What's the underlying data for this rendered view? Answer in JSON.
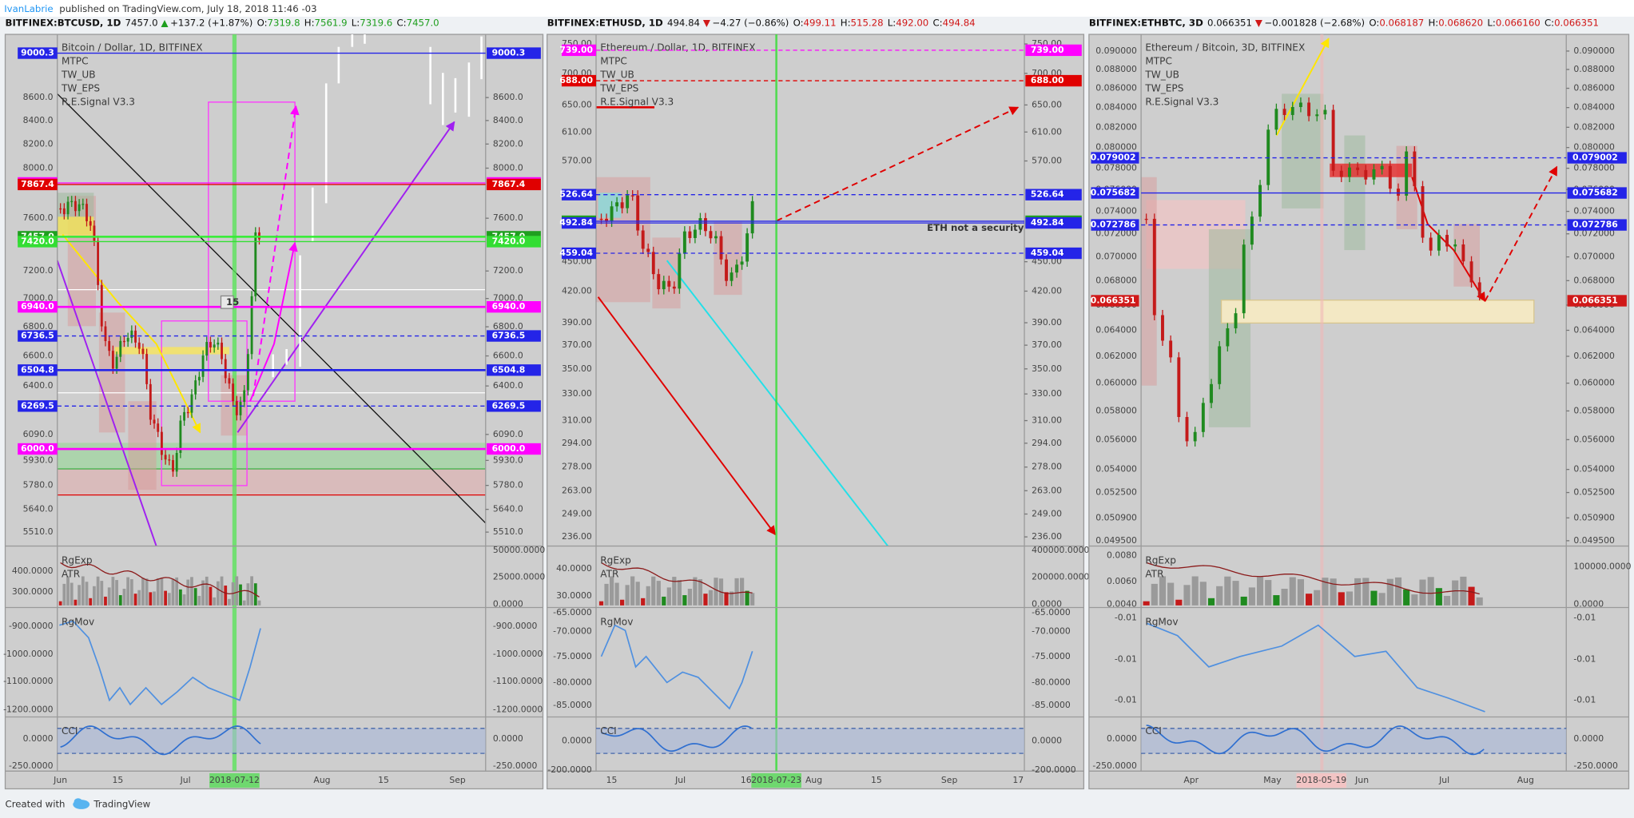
{
  "header": {
    "author": "IvanLabrie",
    "text": "published on TradingView.com, July 18, 2018 11:46 -03"
  },
  "panels": [
    {
      "symbol": "BITFINEX:BTCUSD, 1D",
      "last": "7457.0",
      "arrow": "▲",
      "change": "+137.2 (+1.87%)",
      "direction_color": "#1e9e1e",
      "ohlc": [
        {
          "label": "O:",
          "value": "7319.8"
        },
        {
          "label": "H:",
          "value": "7561.9"
        },
        {
          "label": "L:",
          "value": "7319.6"
        },
        {
          "label": "C:",
          "value": "7457.0"
        }
      ],
      "legend": [
        "Bitcoin / Dollar, 1D, BITFINEX",
        "MTPC",
        "TW_UB",
        "TW_EPS",
        "R.E.Signal V3.3"
      ],
      "ylim": [
        5432,
        9175
      ],
      "price_ticks": [
        {
          "value": 8600,
          "label": "8600.0"
        },
        {
          "value": 8400,
          "label": "8400.0"
        },
        {
          "value": 8200,
          "label": "8200.0"
        },
        {
          "value": 8000,
          "label": "8000.0"
        },
        {
          "value": 7600,
          "label": "7600.0"
        },
        {
          "value": 7200,
          "label": "7200.0"
        },
        {
          "value": 7000,
          "label": "7000.0"
        },
        {
          "value": 6800,
          "label": "6800.0"
        },
        {
          "value": 6600,
          "label": "6600.0"
        },
        {
          "value": 6400,
          "label": "6400.0"
        },
        {
          "value": 6090,
          "label": "6090.0"
        },
        {
          "value": 5930,
          "label": "5930.0"
        },
        {
          "value": 5780,
          "label": "5780.0"
        },
        {
          "value": 5640,
          "label": "5640.0"
        },
        {
          "value": 5510,
          "label": "5510.0"
        }
      ],
      "tags": [
        {
          "value": 9000.3,
          "label": "9000.3",
          "color": "#2424e8",
          "line_color": "#2424e8",
          "line": "solid"
        },
        {
          "value": 7880,
          "label": "7880.0",
          "color": "#ff00ff",
          "line_color": "#ff00ff",
          "line": "solid"
        },
        {
          "value": 7867.4,
          "label": "7867.4",
          "color": "#e00000",
          "line_color": "#e00000",
          "line": "solid"
        },
        {
          "value": 7457,
          "label": "7457.0",
          "color": "#1f9f1f",
          "line_color": "#33ee33",
          "line": "thick"
        },
        {
          "value": 7420,
          "label": "7420.0",
          "color": "#33dd33",
          "line_color": "#33dd33",
          "line": "solid"
        },
        {
          "value": 6940,
          "label": "6940.0",
          "color": "#ff00ff",
          "line_color": "#ff00ff",
          "line": "thick"
        },
        {
          "value": 6736.5,
          "label": "6736.5",
          "color": "#2424e8",
          "line_color": "#2424e8",
          "line": "dashed"
        },
        {
          "value": 6504.8,
          "label": "6504.8",
          "color": "#2424e8",
          "line_color": "#2424e8",
          "line": "thick"
        },
        {
          "value": 6269.5,
          "label": "6269.5",
          "color": "#2424e8",
          "line_color": "#2424e8",
          "line": "dashed"
        },
        {
          "value": 6000,
          "label": "6000.0",
          "color": "#ff00ff",
          "line_color": "#ff00ff",
          "line": "thick"
        }
      ],
      "annotations": [
        "15"
      ],
      "time_ticks": [
        "Jun",
        "15",
        "Jul",
        "Aug",
        "15",
        "Sep"
      ],
      "time_marker": "2018-07-12",
      "volume": {
        "label": "RgExp",
        "sublabel": "ATR",
        "left": [
          "400.0000",
          "300.0000"
        ],
        "right": [
          "50000.0000",
          "25000.0000",
          "0.0000"
        ]
      },
      "rgmov": {
        "label": "RgMov",
        "left": [
          "-900.0000",
          "-1000.0000",
          "-1100.0000",
          "-1200.0000"
        ],
        "right": [
          "-900.0000",
          "-1000.0000",
          "-1100.0000",
          "-1200.0000"
        ]
      },
      "cci": {
        "label": "CCI",
        "left": [
          "0.0000",
          "-250.0000"
        ],
        "right": [
          "0.0000",
          "-250.0000"
        ]
      }
    },
    {
      "symbol": "BITFINEX:ETHUSD, 1D",
      "last": "494.84",
      "arrow": "▼",
      "change": "−4.27 (−0.86%)",
      "direction_color": "#d01818",
      "ohlc": [
        {
          "label": "O:",
          "value": "499.11"
        },
        {
          "label": "H:",
          "value": "515.28"
        },
        {
          "label": "L:",
          "value": "492.00"
        },
        {
          "label": "C:",
          "value": "494.84"
        }
      ],
      "legend": [
        "Ethereum / Dollar, 1D, BITFINEX",
        "MTPC",
        "TW_UB",
        "TW_EPS",
        "R.E.Signal V3.3"
      ],
      "ylim": [
        231,
        767
      ],
      "price_ticks": [
        {
          "value": 750,
          "label": "750.00"
        },
        {
          "value": 700,
          "label": "700.00"
        },
        {
          "value": 650,
          "label": "650.00"
        },
        {
          "value": 610,
          "label": "610.00"
        },
        {
          "value": 570,
          "label": "570.00"
        },
        {
          "value": 450,
          "label": "450.00"
        },
        {
          "value": 420,
          "label": "420.00"
        },
        {
          "value": 390,
          "label": "390.00"
        },
        {
          "value": 370,
          "label": "370.00"
        },
        {
          "value": 350,
          "label": "350.00"
        },
        {
          "value": 330,
          "label": "330.00"
        },
        {
          "value": 310,
          "label": "310.00"
        },
        {
          "value": 294,
          "label": "294.00"
        },
        {
          "value": 278,
          "label": "278.00"
        },
        {
          "value": 263,
          "label": "263.00"
        },
        {
          "value": 249,
          "label": "249.00"
        },
        {
          "value": 236,
          "label": "236.00"
        }
      ],
      "tags": [
        {
          "value": 739,
          "label": "739.00",
          "color": "#ff00ff",
          "line_color": "#ff00ff",
          "line": "dashed"
        },
        {
          "value": 688,
          "label": "688.00",
          "color": "#e00000",
          "line_color": "#e00000",
          "line": "dashed"
        },
        {
          "value": 526.64,
          "label": "526.64",
          "color": "#2424e8",
          "line_color": "#2424e8",
          "line": "dashed"
        },
        {
          "value": 494.84,
          "label": "494.84",
          "color": "#1f9f1f",
          "line_color": "#2424e8",
          "line": "solid"
        },
        {
          "value": 492.84,
          "label": "492.84",
          "color": "#2424e8",
          "line_color": "#2424e8",
          "line": "solid"
        },
        {
          "value": 459.04,
          "label": "459.04",
          "color": "#2424e8",
          "line_color": "#2424e8",
          "line": "dashed"
        }
      ],
      "annotations": [
        "ETH not a security"
      ],
      "time_ticks": [
        "15",
        "Jul",
        "16",
        "Aug",
        "15",
        "Sep",
        "17"
      ],
      "time_marker": "2018-07-23",
      "volume": {
        "label": "RgExp",
        "sublabel": "ATR",
        "left": [
          "40.0000",
          "30.0000"
        ],
        "right": [
          "400000.0000",
          "200000.0000",
          "0.0000"
        ]
      },
      "rgmov": {
        "label": "RgMov",
        "left": [
          "-65.0000",
          "-70.0000",
          "-75.0000",
          "-80.0000",
          "-85.0000"
        ],
        "right": [
          "-65.0000",
          "-70.0000",
          "-75.0000",
          "-80.0000",
          "-85.0000"
        ]
      },
      "cci": {
        "label": "CCI",
        "left": [
          "0.0000",
          "-200.0000"
        ],
        "right": [
          "0.0000",
          "-200.0000"
        ]
      }
    },
    {
      "symbol": "BITFINEX:ETHBTC, 3D",
      "last": "0.066351",
      "arrow": "▼",
      "change": "−0.001828 (−2.68%)",
      "direction_color": "#d01818",
      "ohlc": [
        {
          "label": "O:",
          "value": "0.068187"
        },
        {
          "label": "H:",
          "value": "0.068620"
        },
        {
          "label": "L:",
          "value": "0.066160"
        },
        {
          "label": "C:",
          "value": "0.066351"
        }
      ],
      "legend": [
        "Ethereum / Bitcoin, 3D, BITFINEX",
        "MTPC",
        "TW_UB",
        "TW_EPS",
        "R.E.Signal V3.3"
      ],
      "ylim": [
        0.04918,
        0.09185
      ],
      "price_ticks": [
        {
          "value": 0.09,
          "label": "0.090000"
        },
        {
          "value": 0.088,
          "label": "0.088000"
        },
        {
          "value": 0.086,
          "label": "0.086000"
        },
        {
          "value": 0.084,
          "label": "0.084000"
        },
        {
          "value": 0.082,
          "label": "0.082000"
        },
        {
          "value": 0.08,
          "label": "0.080000"
        },
        {
          "value": 0.078,
          "label": "0.078000"
        },
        {
          "value": 0.076,
          "label": "0.076000"
        },
        {
          "value": 0.074,
          "label": "0.074000"
        },
        {
          "value": 0.072,
          "label": "0.072000"
        },
        {
          "value": 0.07,
          "label": "0.070000"
        },
        {
          "value": 0.068,
          "label": "0.068000"
        },
        {
          "value": 0.066,
          "label": "0.066000"
        },
        {
          "value": 0.064,
          "label": "0.064000"
        },
        {
          "value": 0.062,
          "label": "0.062000"
        },
        {
          "value": 0.06,
          "label": "0.060000"
        },
        {
          "value": 0.058,
          "label": "0.058000"
        },
        {
          "value": 0.056,
          "label": "0.056000"
        },
        {
          "value": 0.054,
          "label": "0.054000"
        },
        {
          "value": 0.0525,
          "label": "0.052500"
        },
        {
          "value": 0.0509,
          "label": "0.050900"
        },
        {
          "value": 0.0495,
          "label": "0.049500"
        }
      ],
      "tags": [
        {
          "value": 0.079002,
          "label": "0.079002",
          "color": "#2424e8",
          "line_color": "#2424e8",
          "line": "dashed"
        },
        {
          "value": 0.075682,
          "label": "0.075682",
          "color": "#2424e8",
          "line_color": "#2424e8",
          "line": "solid"
        },
        {
          "value": 0.072786,
          "label": "0.072786",
          "color": "#2424e8",
          "line_color": "#2424e8",
          "line": "dashed"
        },
        {
          "value": 0.066351,
          "label": "0.066351",
          "color": "#d01818",
          "line_color": "#d01818",
          "line": "none"
        }
      ],
      "annotations": [],
      "time_ticks": [
        "Apr",
        "May",
        "Jun",
        "Jul",
        "Aug"
      ],
      "time_marker": "2018-05-19",
      "volume": {
        "label": "RgExp",
        "sublabel": "ATR",
        "left": [
          "0.0080",
          "0.0060",
          "0.0040"
        ],
        "right": [
          "100000.0000",
          "0.0000"
        ]
      },
      "rgmov": {
        "label": "RgMov",
        "left": [
          "-0.01",
          "-0.01",
          "-0.01"
        ],
        "right": [
          "-0.01",
          "-0.01",
          "-0.01"
        ]
      },
      "cci": {
        "label": "CCI",
        "left": [
          "0.0000",
          "-250.0000"
        ],
        "right": [
          "0.0000",
          "-250.0000"
        ]
      }
    }
  ],
  "footer": {
    "text": "Created with",
    "brand": "TradingView"
  }
}
